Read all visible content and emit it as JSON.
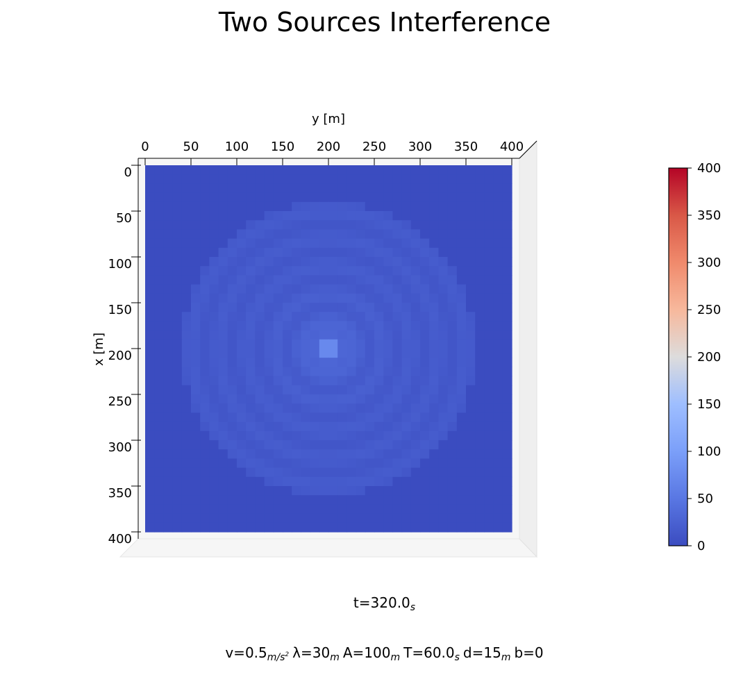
{
  "chart_data": {
    "type": "heatmap",
    "title": "Two Sources Interference",
    "xlabel": "y [m]",
    "ylabel": "x [m]",
    "x_ticks": [
      "0",
      "50",
      "100",
      "150",
      "200",
      "250",
      "300",
      "350",
      "400"
    ],
    "y_ticks": [
      "0",
      "50",
      "100",
      "150",
      "200",
      "250",
      "300",
      "350",
      "400"
    ],
    "xlim": [
      0,
      400
    ],
    "ylim": [
      0,
      400
    ],
    "grid": false,
    "colormap": "coolwarm",
    "colorbar": {
      "ticks": [
        "0",
        "50",
        "100",
        "150",
        "200",
        "250",
        "300",
        "350",
        "400"
      ],
      "range": [
        0,
        400
      ]
    },
    "field": {
      "center": [
        200,
        200
      ],
      "wavefront_radius": 160,
      "peak_value": 120,
      "background_value": 0,
      "ring_wavelength": 30
    },
    "annotation_time": {
      "prefix": "t=",
      "value": "320.0",
      "unit": "s"
    },
    "parameters": [
      {
        "label": "v=",
        "value": "0.5",
        "unit": "m/s",
        "unit_sup": "2"
      },
      {
        "label": "λ=",
        "value": "30",
        "unit": "m"
      },
      {
        "label": "A=",
        "value": "100",
        "unit": "m"
      },
      {
        "label": "T=",
        "value": "60.0",
        "unit": "s"
      },
      {
        "label": "d=",
        "value": "15",
        "unit": "m"
      },
      {
        "label": "b=",
        "value": "0",
        "unit": ""
      }
    ]
  },
  "colors": {
    "low": "#3b4cc0",
    "mid": "#dddddd",
    "high": "#b40426",
    "pane_side": "#f0f0f0",
    "pane_back": "#f6f6f6"
  }
}
